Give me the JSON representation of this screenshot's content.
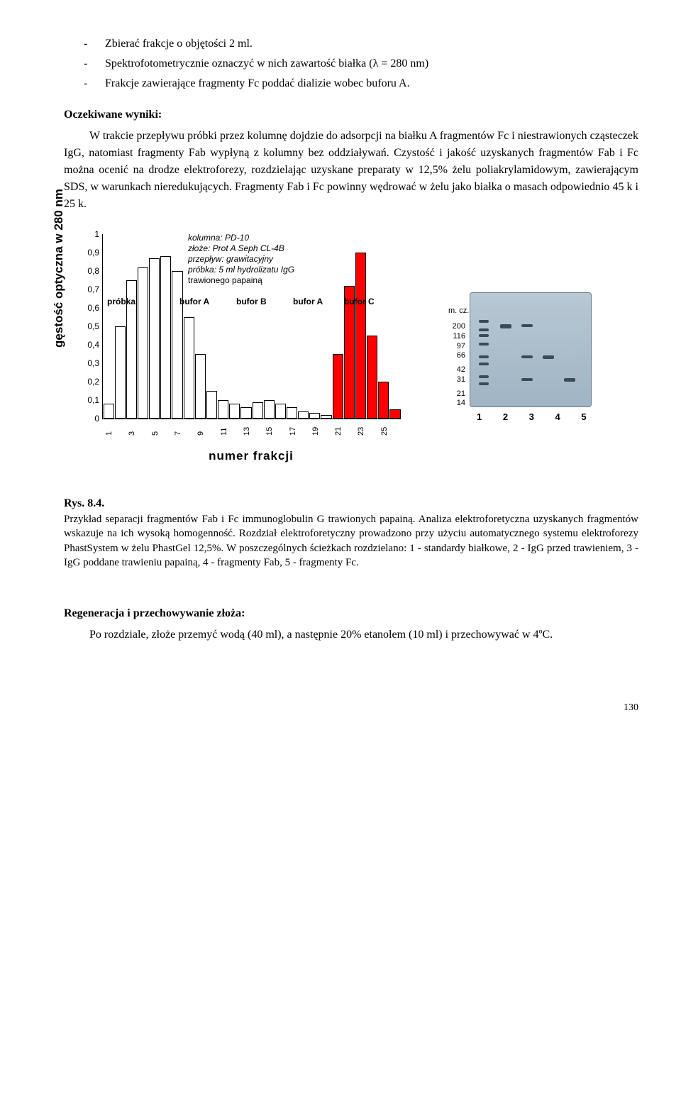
{
  "bullets": [
    "Zbierać frakcje o objętości 2 ml.",
    "Spektrofotometrycznie oznaczyć w nich zawartość białka (λ = 280 nm)",
    "Frakcje zawierające fragmenty Fc  poddać dializie wobec buforu A."
  ],
  "expected_head": "Oczekiwane wyniki:",
  "expected_para": "W trakcie przepływu próbki przez kolumnę dojdzie do adsorpcji na białku A fragmentów Fc i niestrawionych cząsteczek IgG, natomiast fragmenty Fab wypłyną z kolumny bez oddziaływań. Czystość i jakość uzyskanych fragmentów Fab i Fc można ocenić na drodze elektroforezy, rozdzielając uzyskane preparaty w 12,5% żelu poliakrylamidowym, zawierającym SDS, w warunkach nieredukujących. Fragmenty Fab  i Fc powinny wędrować w żelu jako białka o masach odpowiednio 45 k i 25 k.",
  "chart": {
    "y_label": "gęstość optyczna w 280 nm",
    "x_label": "numer    frakcji",
    "ymax": 1.0,
    "yticks": [
      "1",
      "0,9",
      "0,8",
      "0,7",
      "0,6",
      "0,5",
      "0,4",
      "0,3",
      "0,2",
      "0,1",
      "0"
    ],
    "xticks": [
      "1",
      "3",
      "5",
      "7",
      "9",
      "11",
      "13",
      "15",
      "17",
      "19",
      "21",
      "23",
      "25"
    ],
    "values": [
      0.08,
      0.5,
      0.75,
      0.82,
      0.87,
      0.88,
      0.8,
      0.55,
      0.35,
      0.15,
      0.1,
      0.08,
      0.06,
      0.09,
      0.1,
      0.08,
      0.06,
      0.04,
      0.03,
      0.02,
      0.35,
      0.72,
      0.9,
      0.45,
      0.2,
      0.05
    ],
    "red_start_index": 20,
    "bar_fill": "#ffffff",
    "bar_red": "#ff0000",
    "annotations": [
      "kolumna:  PD-10",
      "złoże:  Prot A Seph CL-4B",
      "przepływ:  grawitacyjny",
      "próbka:  5 ml hydrolizatu IgG",
      "              trawionego papainą"
    ],
    "regions": [
      "próbka",
      "bufor A",
      "bufor B",
      "bufor A",
      "bufor C"
    ]
  },
  "gel": {
    "mcz": "m. cz.",
    "mw": [
      "200",
      "116",
      "97",
      "66",
      "42",
      "31",
      "21",
      "14"
    ],
    "lanes": "1  2  3  4  5"
  },
  "caption_head": "Rys. 8.4.",
  "caption": "Przykład separacji fragmentów Fab i Fc immunoglobulin G trawionych papainą. Analiza elektroforetyczna uzyskanych fragmentów wskazuje na ich wysoką homogenność. Rozdział elektroforetyczny prowadzono przy użyciu automatycznego systemu elektroforezy PhastSystem w żelu PhastGel 12,5%. W poszczególnych ścieżkach rozdzielano:  1 - standardy białkowe, 2 - IgG przed trawieniem, 3 - IgG poddane trawieniu papainą, 4 - fragmenty Fab, 5 -  fragmenty Fc.",
  "regen_head": "Regeneracja i przechowywanie złoża:",
  "regen_para": "Po rozdziale, złoże przemyć wodą (40 ml), a następnie 20% etanolem (10 ml) i przechowywać w 4ºC.",
  "pagenum": "130"
}
